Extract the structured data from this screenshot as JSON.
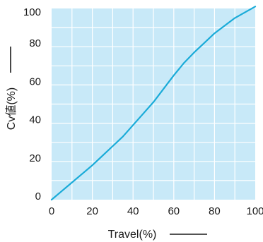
{
  "chart_data": {
    "type": "line",
    "title": "",
    "xlabel": "Travel(%)",
    "ylabel": "Cv値(%)",
    "xlim": [
      0,
      100
    ],
    "ylim": [
      0,
      100
    ],
    "x_ticks": [
      "0",
      "20",
      "40",
      "60",
      "80",
      "100"
    ],
    "y_ticks": [
      "0",
      "20",
      "40",
      "60",
      "80",
      "100"
    ],
    "grid": true,
    "legend": "none",
    "colors": {
      "plot_background": "#c8e9f8",
      "grid": "#ffffff",
      "line": "#1aabd8",
      "text": "#1a1a1a"
    },
    "series": [
      {
        "x": [
          0,
          5,
          10,
          15,
          20,
          25,
          30,
          35,
          40,
          45,
          50,
          55,
          60,
          65,
          70,
          75,
          80,
          85,
          90,
          95,
          100
        ],
        "y": [
          0,
          4.5,
          9,
          13.5,
          18,
          23,
          28,
          33,
          39,
          45,
          51,
          58,
          65,
          71.5,
          77,
          82,
          87,
          91,
          95,
          98,
          101
        ]
      }
    ]
  }
}
